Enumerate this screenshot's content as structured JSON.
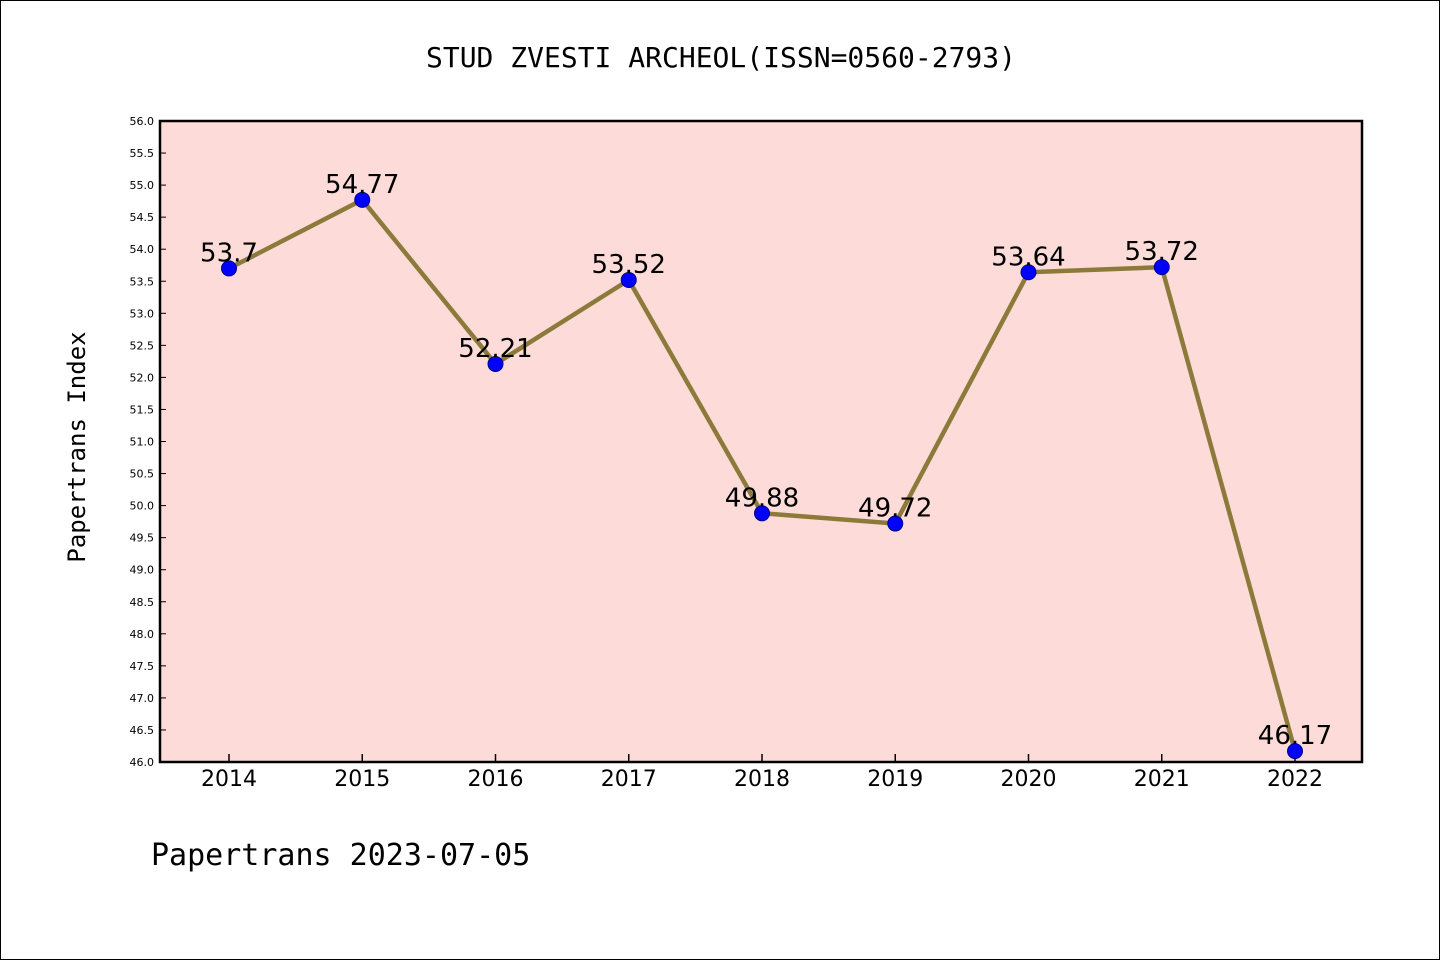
{
  "colors": {
    "plot_background": "#fddbd8",
    "line": "#8c7a3a",
    "marker_fill": "#0000ff",
    "marker_stroke": "#00008b"
  },
  "footer": "Papertrans 2023-07-05",
  "chart_data": {
    "type": "line",
    "title": "STUD ZVESTI ARCHEOL(ISSN=0560-2793)",
    "xlabel": "",
    "ylabel": "Papertrans Index",
    "categories": [
      "2014",
      "2015",
      "2016",
      "2017",
      "2018",
      "2019",
      "2020",
      "2021",
      "2022"
    ],
    "series": [
      {
        "values": [
          53.7,
          54.77,
          52.21,
          53.52,
          49.88,
          49.72,
          53.64,
          53.72,
          46.17
        ],
        "labels": [
          "53.7",
          "54.77",
          "52.21",
          "53.52",
          "49.88",
          "49.72",
          "53.64",
          "53.72",
          "46.17"
        ]
      }
    ],
    "ylim": [
      46.0,
      56.0
    ],
    "yticks": [
      "46.0",
      "46.5",
      "47.0",
      "47.5",
      "48.0",
      "48.5",
      "49.0",
      "49.5",
      "50.0",
      "50.5",
      "51.0",
      "51.5",
      "52.0",
      "52.5",
      "53.0",
      "53.5",
      "54.0",
      "54.5",
      "55.0",
      "55.5",
      "56.0"
    ],
    "grid": false,
    "legend": "none"
  }
}
